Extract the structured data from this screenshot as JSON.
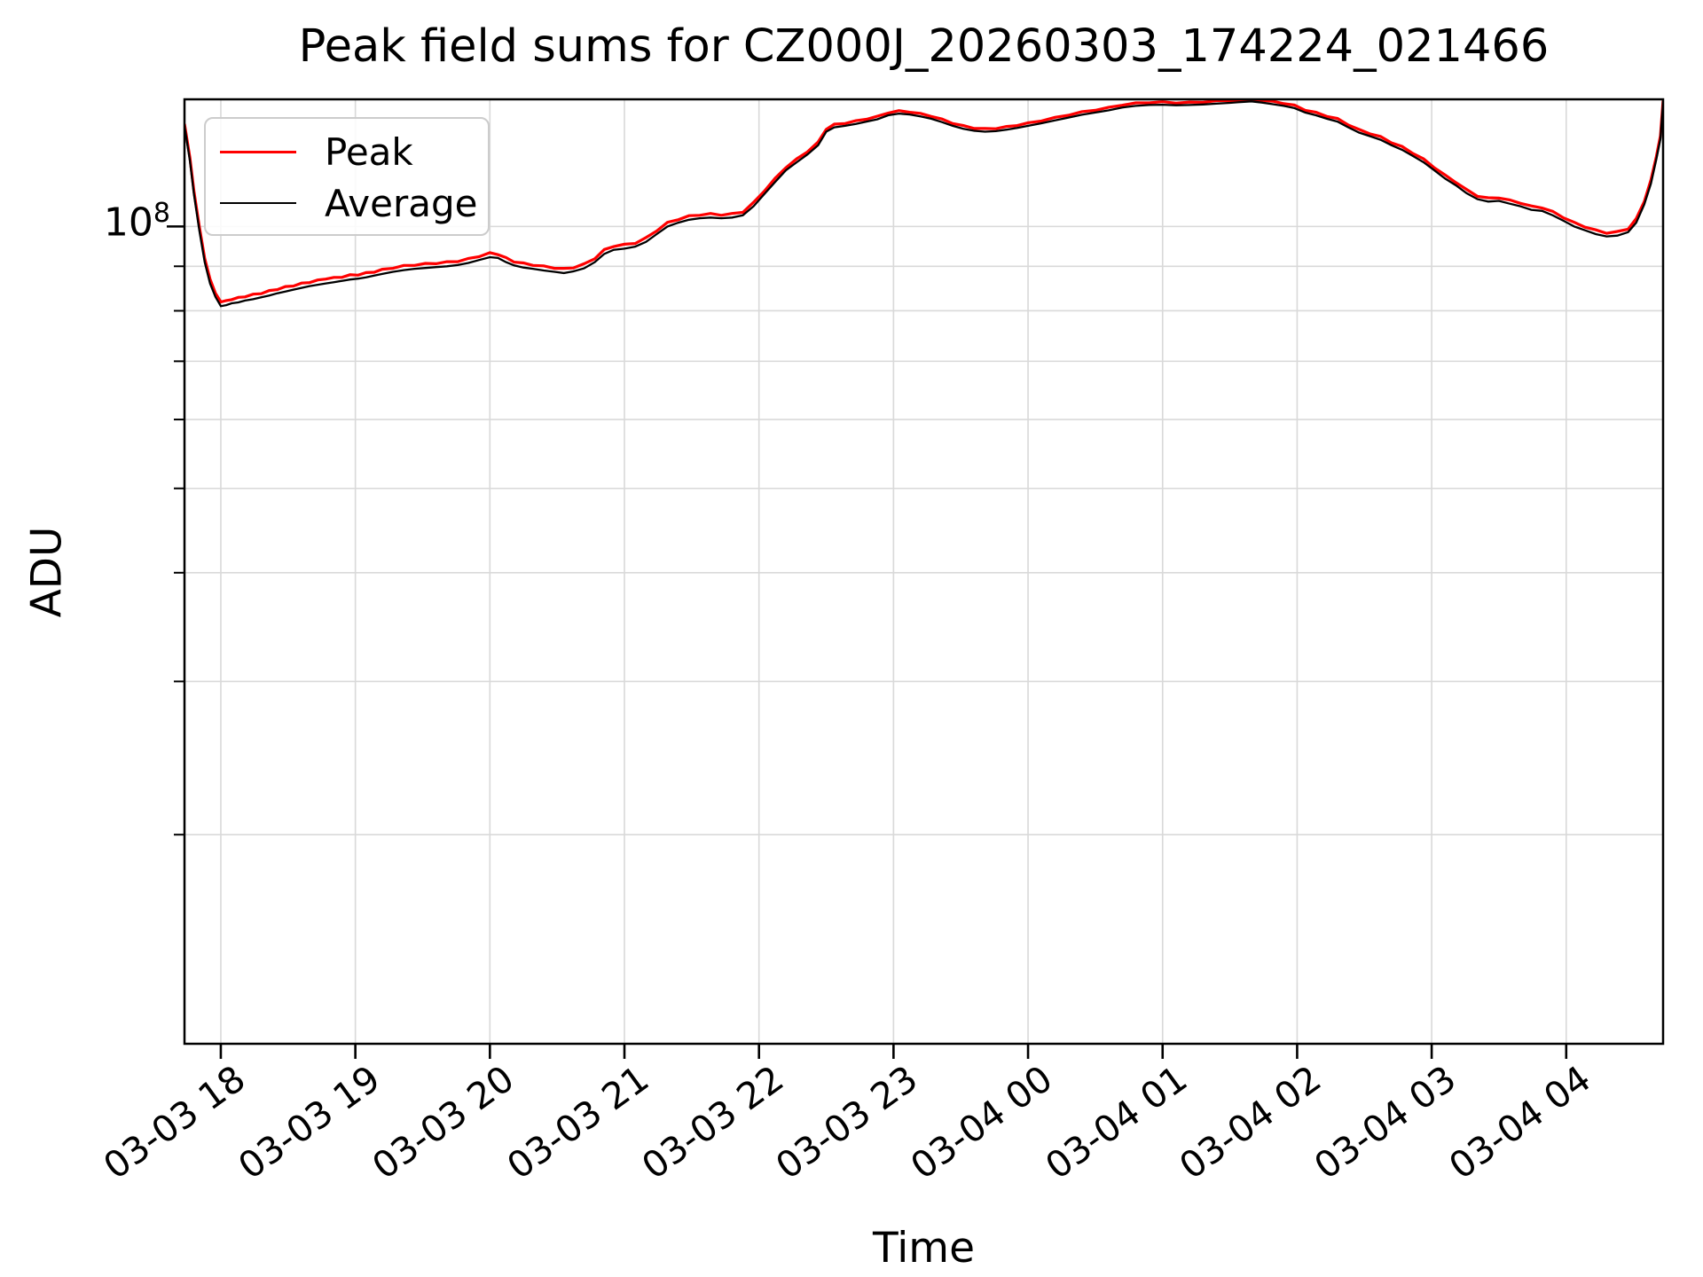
{
  "chart_data": {
    "type": "line",
    "title": "Peak field sums for CZ000J_20260303_174224_021466",
    "xlabel": "Time",
    "ylabel": "ADU",
    "y_scale": "log",
    "grid": true,
    "legend_position": "upper-left",
    "colors": {
      "grid": "#d9d9d9",
      "spine": "#000000",
      "background": "#ffffff"
    },
    "xlim_hours": [
      17.73,
      28.72
    ],
    "ylim_adu": [
      11500000.0,
      140000000.0
    ],
    "x_ticks": [
      {
        "t": 18,
        "label": "03-03 18"
      },
      {
        "t": 19,
        "label": "03-03 19"
      },
      {
        "t": 20,
        "label": "03-03 20"
      },
      {
        "t": 21,
        "label": "03-03 21"
      },
      {
        "t": 22,
        "label": "03-03 22"
      },
      {
        "t": 23,
        "label": "03-03 23"
      },
      {
        "t": 24,
        "label": "03-04 00"
      },
      {
        "t": 25,
        "label": "03-04 01"
      },
      {
        "t": 26,
        "label": "03-04 02"
      },
      {
        "t": 27,
        "label": "03-04 03"
      },
      {
        "t": 28,
        "label": "03-04 04"
      }
    ],
    "y_major_ticks": [
      {
        "value_adu": 100000000.0,
        "label_base": "10",
        "label_exp": "8"
      }
    ],
    "y_minor_ticks_adu": [
      90000000.0,
      80000000.0,
      70000000.0,
      60000000.0,
      50000000.0,
      40000000.0,
      30000000.0,
      20000000.0
    ],
    "series": [
      {
        "name": "Peak",
        "color": "#ff0000",
        "stroke_width": 3.2
      },
      {
        "name": "Average",
        "color": "#000000",
        "stroke_width": 2.3
      }
    ],
    "points_note": "triplets [t_hours, average, peak] with values in units of 1e7 ADU; t>=24 means 03-04",
    "value_unit_adu": 10000000.0,
    "points": [
      [
        17.73,
        13.05,
        13.12
      ],
      [
        17.77,
        11.9,
        12.0
      ],
      [
        17.8,
        10.9,
        10.99
      ],
      [
        17.84,
        9.9,
        10.0
      ],
      [
        17.88,
        9.1,
        9.19
      ],
      [
        17.92,
        8.6,
        8.7
      ],
      [
        17.96,
        8.3,
        8.38
      ],
      [
        18.0,
        8.1,
        8.19
      ],
      [
        18.04,
        8.12,
        8.22
      ],
      [
        18.08,
        8.16,
        8.24
      ],
      [
        18.13,
        8.18,
        8.29
      ],
      [
        18.18,
        8.22,
        8.3
      ],
      [
        18.24,
        8.25,
        8.36
      ],
      [
        18.3,
        8.29,
        8.37
      ],
      [
        18.36,
        8.33,
        8.44
      ],
      [
        18.42,
        8.38,
        8.46
      ],
      [
        18.48,
        8.42,
        8.53
      ],
      [
        18.54,
        8.46,
        8.54
      ],
      [
        18.6,
        8.5,
        8.61
      ],
      [
        18.66,
        8.54,
        8.62
      ],
      [
        18.72,
        8.57,
        8.68
      ],
      [
        18.78,
        8.6,
        8.7
      ],
      [
        18.84,
        8.63,
        8.74
      ],
      [
        18.9,
        8.66,
        8.74
      ],
      [
        18.96,
        8.69,
        8.8
      ],
      [
        19.02,
        8.71,
        8.79
      ],
      [
        19.08,
        8.74,
        8.85
      ],
      [
        19.14,
        8.78,
        8.86
      ],
      [
        19.2,
        8.82,
        8.93
      ],
      [
        19.28,
        8.87,
        8.95
      ],
      [
        19.36,
        8.91,
        9.02
      ],
      [
        19.44,
        8.94,
        9.02
      ],
      [
        19.52,
        8.96,
        9.07
      ],
      [
        19.6,
        8.98,
        9.06
      ],
      [
        19.68,
        9.0,
        9.11
      ],
      [
        19.76,
        9.03,
        9.11
      ],
      [
        19.84,
        9.08,
        9.19
      ],
      [
        19.92,
        9.15,
        9.23
      ],
      [
        20.0,
        9.22,
        9.33
      ],
      [
        20.06,
        9.2,
        9.28
      ],
      [
        20.12,
        9.1,
        9.21
      ],
      [
        20.18,
        9.02,
        9.1
      ],
      [
        20.25,
        8.97,
        9.08
      ],
      [
        20.32,
        8.94,
        9.02
      ],
      [
        20.4,
        8.9,
        9.01
      ],
      [
        20.48,
        8.87,
        8.95
      ],
      [
        20.55,
        8.84,
        8.95
      ],
      [
        20.62,
        8.88,
        8.96
      ],
      [
        20.7,
        8.95,
        9.06
      ],
      [
        20.78,
        9.1,
        9.18
      ],
      [
        20.85,
        9.3,
        9.41
      ],
      [
        20.92,
        9.4,
        9.48
      ],
      [
        21.0,
        9.43,
        9.54
      ],
      [
        21.08,
        9.48,
        9.56
      ],
      [
        21.16,
        9.6,
        9.71
      ],
      [
        21.24,
        9.8,
        9.88
      ],
      [
        21.32,
        10.0,
        10.11
      ],
      [
        21.4,
        10.1,
        10.18
      ],
      [
        21.48,
        10.18,
        10.29
      ],
      [
        21.56,
        10.22,
        10.3
      ],
      [
        21.64,
        10.24,
        10.35
      ],
      [
        21.72,
        10.22,
        10.3
      ],
      [
        21.8,
        10.24,
        10.35
      ],
      [
        21.88,
        10.3,
        10.38
      ],
      [
        21.96,
        10.55,
        10.66
      ],
      [
        22.04,
        10.9,
        10.98
      ],
      [
        22.12,
        11.25,
        11.36
      ],
      [
        22.2,
        11.6,
        11.68
      ],
      [
        22.28,
        11.85,
        11.96
      ],
      [
        22.36,
        12.1,
        12.18
      ],
      [
        22.44,
        12.4,
        12.51
      ],
      [
        22.5,
        12.85,
        12.93
      ],
      [
        22.56,
        13.0,
        13.11
      ],
      [
        22.64,
        13.05,
        13.13
      ],
      [
        22.72,
        13.12,
        13.23
      ],
      [
        22.8,
        13.2,
        13.28
      ],
      [
        22.88,
        13.28,
        13.39
      ],
      [
        22.96,
        13.42,
        13.5
      ],
      [
        23.04,
        13.48,
        13.59
      ],
      [
        23.12,
        13.45,
        13.53
      ],
      [
        23.2,
        13.38,
        13.49
      ],
      [
        23.28,
        13.3,
        13.38
      ],
      [
        23.36,
        13.18,
        13.29
      ],
      [
        23.44,
        13.05,
        13.13
      ],
      [
        23.52,
        12.95,
        13.06
      ],
      [
        23.6,
        12.88,
        12.96
      ],
      [
        23.68,
        12.85,
        12.96
      ],
      [
        23.76,
        12.87,
        12.95
      ],
      [
        23.84,
        12.92,
        13.03
      ],
      [
        23.92,
        12.98,
        13.06
      ],
      [
        24.0,
        13.05,
        13.16
      ],
      [
        24.1,
        13.14,
        13.22
      ],
      [
        24.2,
        13.24,
        13.35
      ],
      [
        24.3,
        13.34,
        13.42
      ],
      [
        24.4,
        13.44,
        13.55
      ],
      [
        24.5,
        13.52,
        13.6
      ],
      [
        24.6,
        13.6,
        13.71
      ],
      [
        24.7,
        13.7,
        13.78
      ],
      [
        24.8,
        13.76,
        13.87
      ],
      [
        24.9,
        13.79,
        13.87
      ],
      [
        25.0,
        13.8,
        13.91
      ],
      [
        25.1,
        13.78,
        13.86
      ],
      [
        25.2,
        13.79,
        13.9
      ],
      [
        25.3,
        13.81,
        13.89
      ],
      [
        25.4,
        13.84,
        13.95
      ],
      [
        25.5,
        13.87,
        13.95
      ],
      [
        25.58,
        13.9,
        13.97
      ],
      [
        25.66,
        13.92,
        13.98
      ],
      [
        25.74,
        13.88,
        13.96
      ],
      [
        25.82,
        13.82,
        13.93
      ],
      [
        25.9,
        13.76,
        13.84
      ],
      [
        25.98,
        13.68,
        13.79
      ],
      [
        26.06,
        13.52,
        13.6
      ],
      [
        26.14,
        13.42,
        13.53
      ],
      [
        26.22,
        13.3,
        13.38
      ],
      [
        26.3,
        13.2,
        13.31
      ],
      [
        26.38,
        13.0,
        13.08
      ],
      [
        26.46,
        12.82,
        12.93
      ],
      [
        26.54,
        12.7,
        12.78
      ],
      [
        26.62,
        12.58,
        12.69
      ],
      [
        26.7,
        12.4,
        12.48
      ],
      [
        26.78,
        12.25,
        12.36
      ],
      [
        26.86,
        12.05,
        12.13
      ],
      [
        26.94,
        11.85,
        11.96
      ],
      [
        27.02,
        11.6,
        11.68
      ],
      [
        27.1,
        11.35,
        11.46
      ],
      [
        27.18,
        11.15,
        11.23
      ],
      [
        27.26,
        10.92,
        11.03
      ],
      [
        27.34,
        10.75,
        10.83
      ],
      [
        27.42,
        10.68,
        10.79
      ],
      [
        27.5,
        10.7,
        10.78
      ],
      [
        27.58,
        10.62,
        10.73
      ],
      [
        27.66,
        10.55,
        10.63
      ],
      [
        27.74,
        10.45,
        10.56
      ],
      [
        27.82,
        10.42,
        10.5
      ],
      [
        27.9,
        10.3,
        10.41
      ],
      [
        27.98,
        10.15,
        10.23
      ],
      [
        28.06,
        10.0,
        10.11
      ],
      [
        28.14,
        9.9,
        9.98
      ],
      [
        28.22,
        9.8,
        9.91
      ],
      [
        28.3,
        9.74,
        9.82
      ],
      [
        28.38,
        9.76,
        9.87
      ],
      [
        28.46,
        9.85,
        9.93
      ],
      [
        28.52,
        10.1,
        10.21
      ],
      [
        28.58,
        10.6,
        10.68
      ],
      [
        28.63,
        11.2,
        11.31
      ],
      [
        28.67,
        11.95,
        12.03
      ],
      [
        28.7,
        12.6,
        12.71
      ],
      [
        28.72,
        13.9,
        13.95
      ]
    ]
  }
}
